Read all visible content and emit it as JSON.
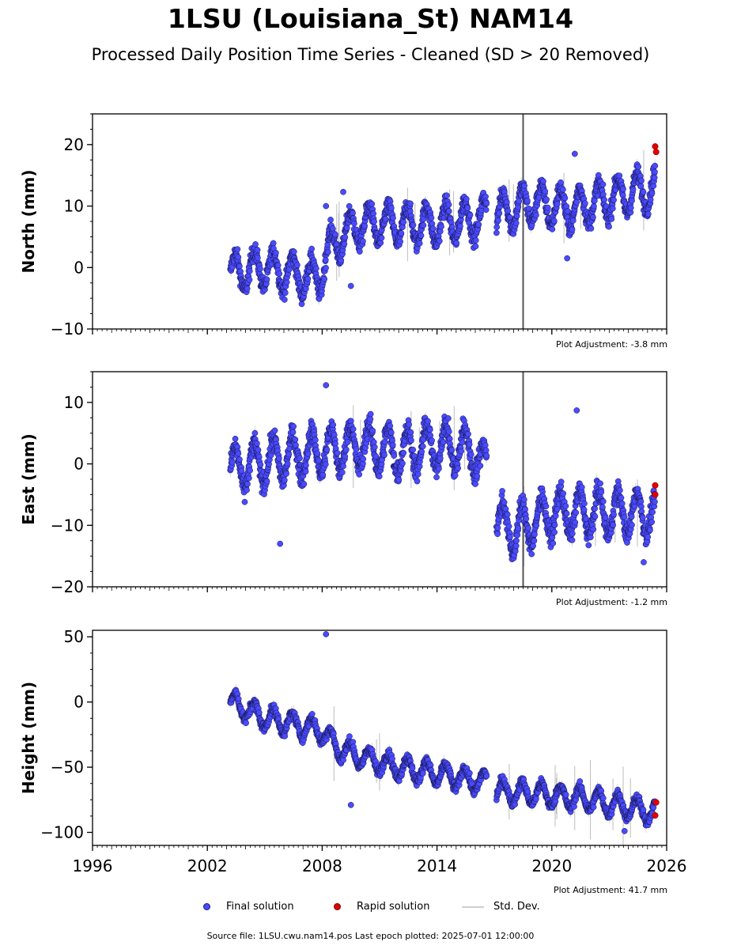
{
  "title": "1LSU (Louisiana_St) NAM14",
  "subtitle": "Processed Daily Position Time Series - Cleaned (SD > 20 Removed)",
  "panels": [
    {
      "ylabel": "North (mm)",
      "adjustment": "Plot Adjustment: -3.8 mm"
    },
    {
      "ylabel": "East (mm)",
      "adjustment": "Plot Adjustment: -1.2 mm"
    },
    {
      "ylabel": "Height (mm)",
      "adjustment": "Plot Adjustment: 41.7 mm"
    }
  ],
  "legend": {
    "final": "Final solution",
    "rapid": "Rapid solution",
    "sd": "Std. Dev."
  },
  "source": "Source file: 1LSU.cwu.nam14.pos  Last epoch plotted: 2025-07-01 12:00:00",
  "colors": {
    "final": "#4a4aff",
    "rapid": "#e00000",
    "sd": "#c8c8c8"
  },
  "chart_data": [
    {
      "type": "scatter",
      "ylabel": "North (mm)",
      "xlim": [
        1996,
        2026
      ],
      "ylim": [
        -10,
        25
      ],
      "x_ticks": [
        "1996",
        "2002",
        "2008",
        "2014",
        "2020",
        "2026"
      ],
      "y_ticks": [
        -10,
        0,
        10,
        20
      ],
      "trend_points": [
        [
          2003.2,
          -1
        ],
        [
          2005,
          0
        ],
        [
          2007.8,
          -2
        ],
        [
          2008.2,
          2
        ],
        [
          2009,
          5
        ],
        [
          2010,
          7
        ],
        [
          2011,
          7
        ],
        [
          2014,
          7
        ],
        [
          2016,
          8
        ],
        [
          2017,
          8.5
        ],
        [
          2019,
          10.5
        ],
        [
          2021,
          9.5
        ],
        [
          2024,
          12
        ],
        [
          2025.4,
          13
        ]
      ],
      "seasonal_amplitude": 3,
      "outliers": [
        [
          2008.2,
          10
        ],
        [
          2009.1,
          12.3
        ],
        [
          2009.5,
          -3
        ],
        [
          2021.2,
          18.5
        ],
        [
          2020.8,
          1.5
        ]
      ],
      "rapid_points": [
        [
          2025.4,
          19.7
        ],
        [
          2025.45,
          18.8
        ]
      ],
      "series": [
        {
          "name": "Final solution"
        },
        {
          "name": "Rapid solution"
        }
      ]
    },
    {
      "type": "scatter",
      "ylabel": "East (mm)",
      "xlim": [
        1996,
        2026
      ],
      "ylim": [
        -20,
        15
      ],
      "x_ticks": [
        "1996",
        "2002",
        "2008",
        "2014",
        "2020",
        "2026"
      ],
      "y_ticks": [
        -20,
        -10,
        0,
        10
      ],
      "trend_points": [
        [
          2003.2,
          -1
        ],
        [
          2006,
          1
        ],
        [
          2008,
          2
        ],
        [
          2010,
          3
        ],
        [
          2012,
          2
        ],
        [
          2014,
          3
        ],
        [
          2016,
          2
        ],
        [
          2016.8,
          -2
        ],
        [
          2017,
          -9
        ],
        [
          2018,
          -11
        ],
        [
          2020,
          -8
        ],
        [
          2023,
          -8
        ],
        [
          2025.4,
          -8
        ]
      ],
      "seasonal_amplitude": 3.5,
      "outliers": [
        [
          2005.8,
          -13
        ],
        [
          2008.2,
          12.8
        ],
        [
          2021.3,
          8.7
        ],
        [
          2024.8,
          -16
        ]
      ],
      "rapid_points": [
        [
          2025.4,
          -3.5
        ],
        [
          2025.4,
          -5
        ]
      ],
      "series": [
        {
          "name": "Final solution"
        },
        {
          "name": "Rapid solution"
        }
      ]
    },
    {
      "type": "scatter",
      "ylabel": "Height (mm)",
      "xlim": [
        1996,
        2026
      ],
      "ylim": [
        -110,
        55
      ],
      "x_ticks": [
        "1996",
        "2002",
        "2008",
        "2014",
        "2020",
        "2026"
      ],
      "y_ticks": [
        -100,
        -50,
        0,
        50
      ],
      "trend_points": [
        [
          2003.2,
          0
        ],
        [
          2005,
          -12
        ],
        [
          2008,
          -22
        ],
        [
          2008.8,
          -35
        ],
        [
          2010,
          -42
        ],
        [
          2012,
          -50
        ],
        [
          2014,
          -55
        ],
        [
          2016.5,
          -62
        ],
        [
          2017,
          -68
        ],
        [
          2019,
          -70
        ],
        [
          2022,
          -75
        ],
        [
          2025.4,
          -85
        ]
      ],
      "seasonal_amplitude": 8,
      "outliers": [
        [
          2008.2,
          52
        ],
        [
          2009.5,
          -79
        ],
        [
          2023.8,
          -99
        ]
      ],
      "rapid_points": [
        [
          2025.45,
          -77
        ],
        [
          2025.4,
          -87
        ]
      ],
      "series": [
        {
          "name": "Final solution"
        },
        {
          "name": "Rapid solution"
        }
      ]
    }
  ]
}
